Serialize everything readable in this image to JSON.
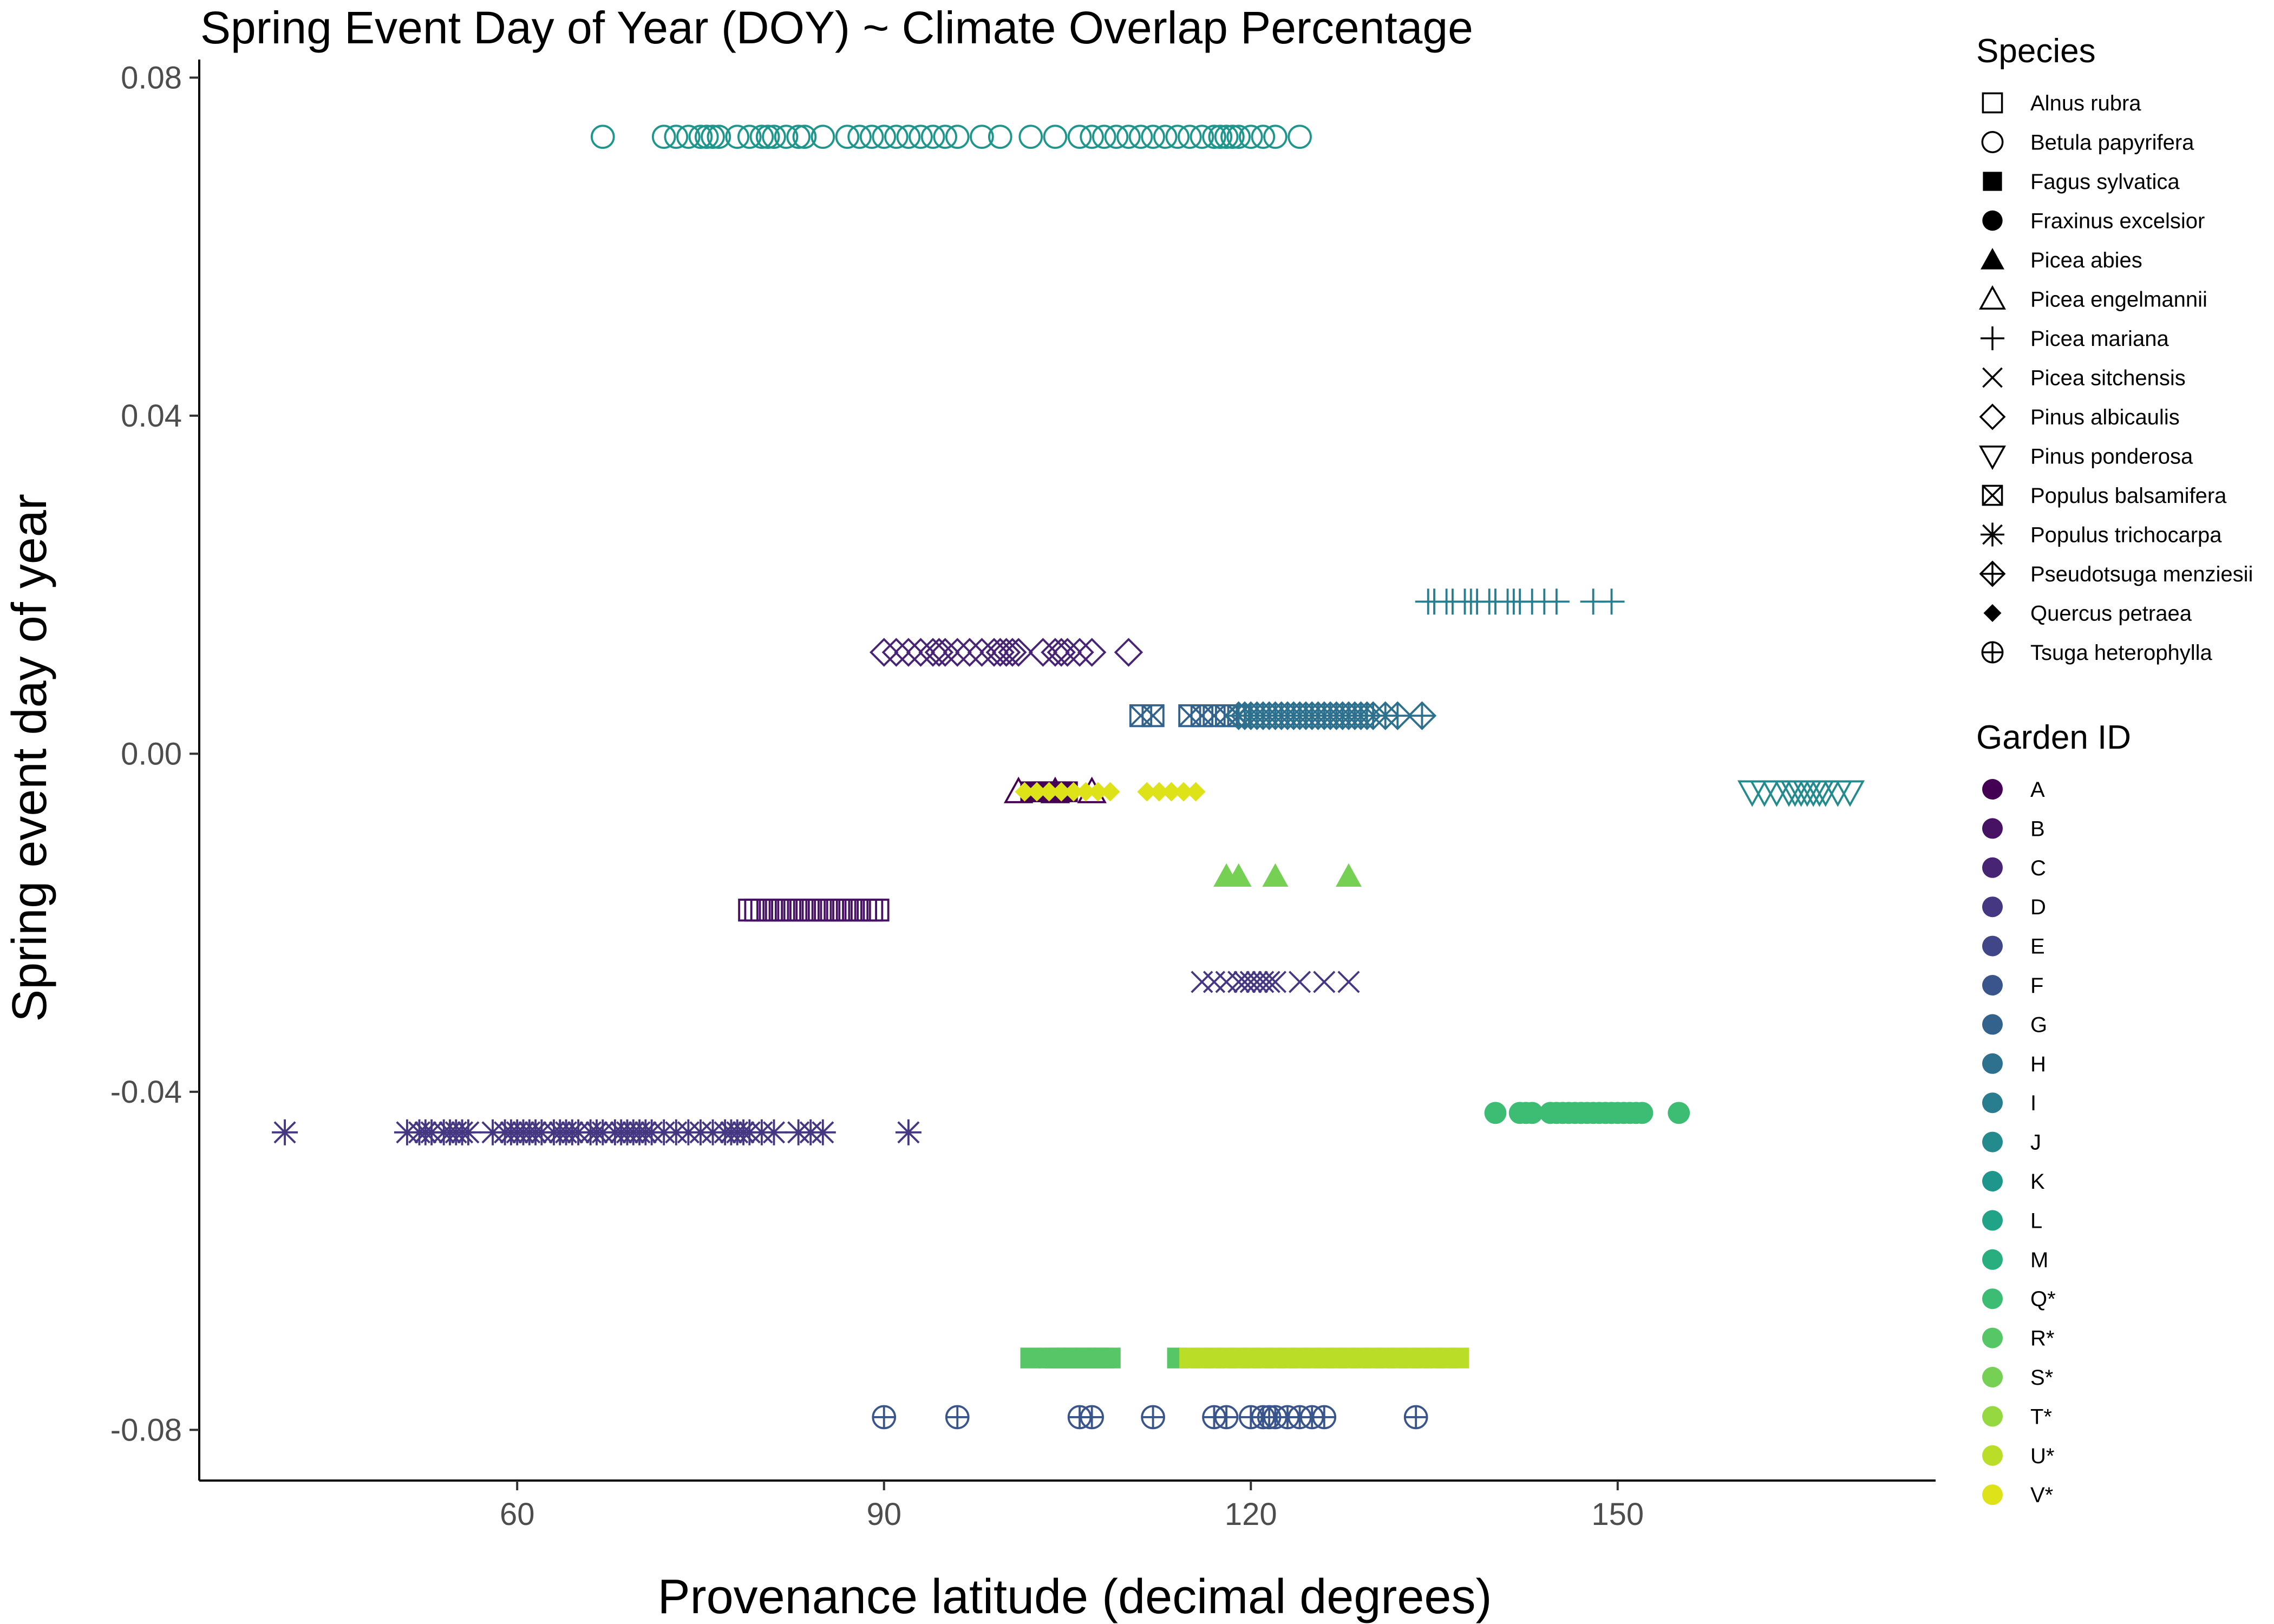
{
  "chart_data": {
    "type": "scatter",
    "title": "Spring Event Day of Year (DOY) ~ Climate Overlap Percentage",
    "xlabel": "Provenance latitude (decimal degrees)",
    "ylabel": "Spring event day of year",
    "xlim": [
      34,
      176
    ],
    "ylim": [
      -0.086,
      0.0815
    ],
    "x_ticks": [
      60,
      90,
      120,
      150
    ],
    "x_tick_labels": [
      "60",
      "90",
      "120",
      "150"
    ],
    "y_ticks": [
      0.08,
      0.04,
      0.0,
      -0.04,
      -0.08
    ],
    "y_tick_labels": [
      "0.08",
      "0.04",
      "0.00",
      "-0.04",
      "-0.08"
    ],
    "grid": false,
    "legend_placement": "right",
    "legends": [
      {
        "title": "Species",
        "entries": [
          {
            "label": "Alnus rubra",
            "shape": "square-open"
          },
          {
            "label": "Betula papyrifera",
            "shape": "circle-open"
          },
          {
            "label": "Fagus sylvatica",
            "shape": "square-filled"
          },
          {
            "label": "Fraxinus excelsior",
            "shape": "circle-filled"
          },
          {
            "label": "Picea abies",
            "shape": "triangle-filled"
          },
          {
            "label": "Picea engelmannii",
            "shape": "triangle-open"
          },
          {
            "label": "Picea mariana",
            "shape": "plus"
          },
          {
            "label": "Picea sitchensis",
            "shape": "cross"
          },
          {
            "label": "Pinus albicaulis",
            "shape": "diamond-open"
          },
          {
            "label": "Pinus ponderosa",
            "shape": "triangle-down-open"
          },
          {
            "label": "Populus balsamifera",
            "shape": "square-cross"
          },
          {
            "label": "Populus trichocarpa",
            "shape": "asterisk"
          },
          {
            "label": "Pseudotsuga menziesii",
            "shape": "diamond-plus"
          },
          {
            "label": "Quercus petraea",
            "shape": "diamond-filled"
          },
          {
            "label": "Tsuga heterophylla",
            "shape": "circle-plus"
          }
        ]
      },
      {
        "title": "Garden ID",
        "entries": [
          {
            "label": "A",
            "color": "#440154"
          },
          {
            "label": "B",
            "color": "#471164"
          },
          {
            "label": "C",
            "color": "#482475"
          },
          {
            "label": "D",
            "color": "#453781"
          },
          {
            "label": "E",
            "color": "#404688"
          },
          {
            "label": "F",
            "color": "#39558c"
          },
          {
            "label": "G",
            "color": "#33638d"
          },
          {
            "label": "H",
            "color": "#2d718e"
          },
          {
            "label": "I",
            "color": "#287d8e"
          },
          {
            "label": "J",
            "color": "#238a8d"
          },
          {
            "label": "K",
            "color": "#1f968b"
          },
          {
            "label": "L",
            "color": "#20a386"
          },
          {
            "label": "M",
            "color": "#29af7f"
          },
          {
            "label": "Q*",
            "color": "#3dbc74"
          },
          {
            "label": "R*",
            "color": "#56c667"
          },
          {
            "label": "S*",
            "color": "#75d054"
          },
          {
            "label": "T*",
            "color": "#95d840"
          },
          {
            "label": "U*",
            "color": "#bade28"
          },
          {
            "label": "V*",
            "color": "#dde318"
          }
        ]
      }
    ],
    "series": [
      {
        "species": "Betula papyrifera",
        "shape": "circle-open",
        "color": "#1f968b",
        "y": 0.073,
        "x": [
          67,
          72,
          73,
          74,
          75,
          75.5,
          76,
          76.5,
          78,
          79,
          80,
          80.5,
          81,
          82,
          83,
          83.5,
          85,
          87,
          88,
          89,
          90,
          91,
          92,
          93,
          94,
          95,
          96,
          98,
          99.5,
          102,
          104,
          106,
          107,
          108,
          109,
          110,
          111,
          112,
          113,
          114,
          115,
          116,
          117,
          117.5,
          118,
          118.5,
          119,
          120,
          121,
          122,
          124
        ]
      },
      {
        "species": "Picea mariana",
        "shape": "plus",
        "color": "#287d8e",
        "y": 0.018,
        "x": [
          134.5,
          135,
          136,
          136.5,
          137.5,
          138,
          138.5,
          139.5,
          140,
          141,
          141.5,
          142,
          143,
          144,
          145,
          148,
          149.5
        ]
      },
      {
        "species": "Pinus albicaulis",
        "shape": "diamond-open",
        "color": "#482475",
        "y": 0.012,
        "x": [
          90,
          91,
          92,
          93,
          94,
          94.5,
          95,
          96,
          97,
          98,
          99,
          99.5,
          100,
          100.5,
          101,
          103,
          104,
          104.5,
          105,
          106,
          107,
          110
        ]
      },
      {
        "species": "Populus balsamifera",
        "shape": "square-cross",
        "color": "#33638d",
        "y": 0.0045,
        "x": [
          111,
          112,
          115,
          116,
          117,
          118,
          119
        ]
      },
      {
        "species": "Pseudotsuga menziesii",
        "shape": "diamond-plus",
        "color": "#2d718e",
        "y": 0.0045,
        "x": [
          119,
          119.5,
          120,
          120.5,
          121,
          121.5,
          122,
          122.5,
          123,
          123.5,
          124,
          124.5,
          125,
          125.5,
          126,
          126.5,
          127,
          127.5,
          128,
          128.5,
          129,
          129.5,
          130,
          131,
          132,
          134
        ]
      },
      {
        "species": "Picea engelmannii",
        "shape": "triangle-open",
        "color": "#440154",
        "y": -0.0045,
        "x": [
          101,
          104,
          107
        ]
      },
      {
        "species": "Fagus sylvatica",
        "shape": "square-filled",
        "color": "#440154",
        "y": -0.0045,
        "x": [
          102,
          102.5,
          103,
          103.5,
          104,
          104.5,
          105
        ]
      },
      {
        "species": "Quercus petraea",
        "shape": "diamond-filled",
        "color": "#dde318",
        "y": -0.0045,
        "x": [
          101.5,
          102.5,
          103.5,
          104.5,
          105.5,
          106.5,
          107.5,
          108.5,
          111.5,
          112.5,
          113.5,
          114.5,
          115.5
        ]
      },
      {
        "species": "Pinus ponderosa",
        "shape": "triangle-down-open",
        "color": "#238a8d",
        "y": -0.0045,
        "x": [
          161,
          162,
          163,
          164,
          164.5,
          165,
          165.5,
          166,
          166.5,
          167,
          168,
          169
        ]
      },
      {
        "species": "Picea abies",
        "shape": "triangle-filled",
        "color": "#75d054",
        "y": -0.0145,
        "x": [
          118,
          119,
          122,
          128
        ]
      },
      {
        "species": "Alnus rubra",
        "shape": "square-open",
        "color": "#471164",
        "y": -0.0185,
        "x": [
          79,
          79.5,
          80,
          80.5,
          81,
          81.5,
          82,
          82.5,
          83,
          83.5,
          84,
          84.5,
          85,
          85.5,
          86,
          86.5,
          87,
          87.5,
          88,
          88.5,
          89,
          89.5
        ]
      },
      {
        "species": "Picea sitchensis",
        "shape": "cross",
        "color": "#453781",
        "y": -0.027,
        "x": [
          116,
          117,
          118,
          119,
          119.5,
          120,
          120.5,
          121,
          121.5,
          122,
          124,
          126,
          128
        ]
      },
      {
        "species": "Populus trichocarpa",
        "shape": "asterisk",
        "color": "#453781",
        "y": -0.0448,
        "x": [
          41,
          51,
          52,
          52.5,
          53,
          54,
          54.5,
          55,
          55.5,
          56,
          58,
          59,
          59.5,
          60,
          60.5,
          61,
          61.5,
          62,
          63,
          63.5,
          64,
          64.5,
          65,
          66,
          66.5,
          67,
          68,
          68.5,
          69,
          69.5,
          70,
          70.5,
          71,
          72,
          73,
          74,
          75,
          76,
          77,
          77.5,
          78,
          78.5,
          79,
          80,
          81,
          83,
          84,
          85,
          92
        ]
      },
      {
        "species": "Fraxinus excelsior",
        "shape": "circle-filled",
        "color": "#3dbc74",
        "y": -0.0425,
        "x": [
          140,
          142,
          142.5,
          143,
          144.5,
          145,
          145.5,
          146,
          146.5,
          147,
          147.5,
          148,
          148.5,
          149,
          149.5,
          150,
          150.5,
          151,
          151.5,
          152,
          155
        ]
      },
      {
        "species": "Fagus sylvatica",
        "shape": "square-filled",
        "color": "#56c667",
        "y": -0.0715,
        "x": [
          102,
          103.5,
          104,
          104.5,
          105,
          105.5,
          106,
          106.5,
          107,
          107.5,
          108,
          108.5,
          114
        ]
      },
      {
        "species": "Fagus sylvatica",
        "shape": "square-filled",
        "color": "#bade28",
        "y": -0.0715,
        "x": [
          115,
          116,
          117,
          118,
          119,
          120,
          121,
          122,
          123,
          124,
          125,
          126,
          127,
          128,
          129,
          130,
          131,
          132,
          133,
          134,
          135,
          136,
          137
        ]
      },
      {
        "species": "Tsuga heterophylla",
        "shape": "circle-plus",
        "color": "#39558c",
        "y": -0.0785,
        "x": [
          90,
          96,
          106,
          107,
          112,
          117,
          118,
          120,
          121,
          121.5,
          122,
          123,
          124,
          125,
          126,
          133.5
        ]
      }
    ]
  }
}
